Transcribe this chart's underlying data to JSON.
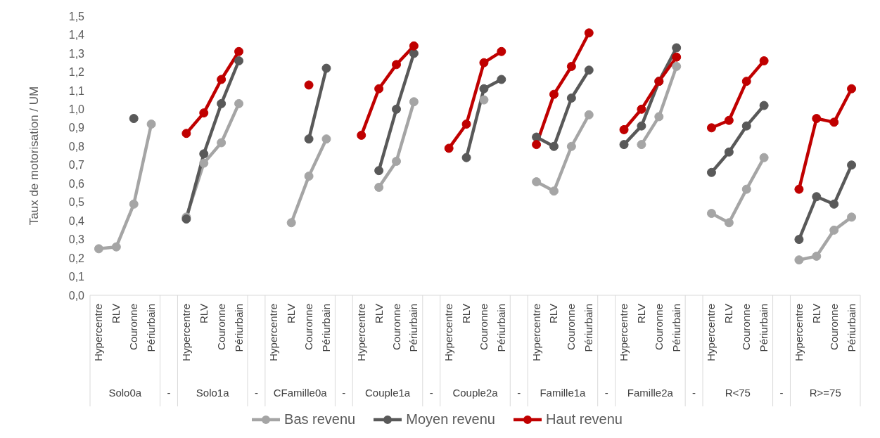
{
  "chart_data": {
    "type": "line",
    "ylabel": "Taux de motorisation / UM",
    "categories": [
      "Hypercentre",
      "RLV",
      "Couronne",
      "Périurbain",
      null,
      "Hypercentre",
      "RLV",
      "Couronne",
      "Périurbain",
      null,
      "Hypercentre",
      "RLV",
      "Couronne",
      "Périurbain",
      null,
      "Hypercentre",
      "RLV",
      "Couronne",
      "Périurbain",
      null,
      "Hypercentre",
      "RLV",
      "Couronne",
      "Périurbain",
      null,
      "Hypercentre",
      "RLV",
      "Couronne",
      "Périurbain",
      null,
      "Hypercentre",
      "RLV",
      "Couronne",
      "Périurbain",
      null,
      "Hypercentre",
      "RLV",
      "Couronne",
      "Périurbain",
      null,
      "Hypercentre",
      "RLV",
      "Couronne",
      "Périurbain"
    ],
    "annotations": [
      "Solo0a",
      "-",
      "Solo1a",
      "-",
      "CFamille0a",
      "-",
      "Couple1a",
      "-",
      "Couple2a",
      "-",
      "Famille1a",
      "-",
      "Famille2a",
      "-",
      "R<75",
      "-",
      "R>=75"
    ],
    "series": [
      {
        "name": "Bas revenu",
        "color": "#a5a5a5",
        "values": [
          0.25,
          0.26,
          0.49,
          0.92,
          null,
          0.42,
          0.71,
          0.82,
          1.03,
          null,
          null,
          0.39,
          0.64,
          0.84,
          null,
          null,
          0.58,
          0.72,
          1.04,
          null,
          null,
          null,
          1.05,
          null,
          null,
          0.61,
          0.56,
          0.8,
          0.97,
          null,
          null,
          0.81,
          0.96,
          1.23,
          null,
          0.44,
          0.39,
          0.57,
          0.74,
          null,
          0.19,
          0.21,
          0.35,
          0.42
        ]
      },
      {
        "name": "Moyen revenu",
        "color": "#595959",
        "values": [
          null,
          null,
          0.95,
          null,
          null,
          0.41,
          0.76,
          1.03,
          1.26,
          null,
          null,
          null,
          0.84,
          1.22,
          null,
          null,
          0.67,
          1.0,
          1.3,
          null,
          null,
          0.74,
          1.11,
          1.16,
          null,
          0.85,
          0.8,
          1.06,
          1.21,
          null,
          0.81,
          0.91,
          1.15,
          1.33,
          null,
          0.66,
          0.77,
          0.91,
          1.02,
          null,
          0.3,
          0.53,
          0.49,
          0.7
        ]
      },
      {
        "name": "Haut revenu",
        "color": "#c00000",
        "values": [
          null,
          null,
          null,
          null,
          null,
          0.87,
          0.98,
          1.16,
          1.31,
          null,
          null,
          null,
          1.13,
          null,
          null,
          0.86,
          1.11,
          1.24,
          1.34,
          null,
          0.79,
          0.92,
          1.25,
          1.31,
          null,
          0.81,
          1.08,
          1.23,
          1.41,
          null,
          0.89,
          1.0,
          1.15,
          1.28,
          null,
          0.9,
          0.94,
          1.15,
          1.26,
          null,
          0.57,
          0.95,
          0.93,
          1.11
        ]
      }
    ],
    "ylim": [
      0,
      1.5
    ],
    "yticks": [
      {
        "value": 0,
        "label": "0,0"
      },
      {
        "value": 0.1,
        "label": "0,1"
      },
      {
        "value": 0.2,
        "label": "0,2"
      },
      {
        "value": 0.3,
        "label": "0,3"
      },
      {
        "value": 0.4,
        "label": "0,4"
      },
      {
        "value": 0.5,
        "label": "0,5"
      },
      {
        "value": 0.6,
        "label": "0,6"
      },
      {
        "value": 0.7,
        "label": "0,7"
      },
      {
        "value": 0.8,
        "label": "0,8"
      },
      {
        "value": 0.9,
        "label": "0,9"
      },
      {
        "value": 1.0,
        "label": "1,0"
      },
      {
        "value": 1.1,
        "label": "1,1"
      },
      {
        "value": 1.2,
        "label": "1,2"
      },
      {
        "value": 1.3,
        "label": "1,3"
      },
      {
        "value": 1.4,
        "label": "1,4"
      },
      {
        "value": 1.5,
        "label": "1,5"
      }
    ],
    "grid": false,
    "legend": "bottom",
    "marker": "circle",
    "line_style": "solid"
  }
}
